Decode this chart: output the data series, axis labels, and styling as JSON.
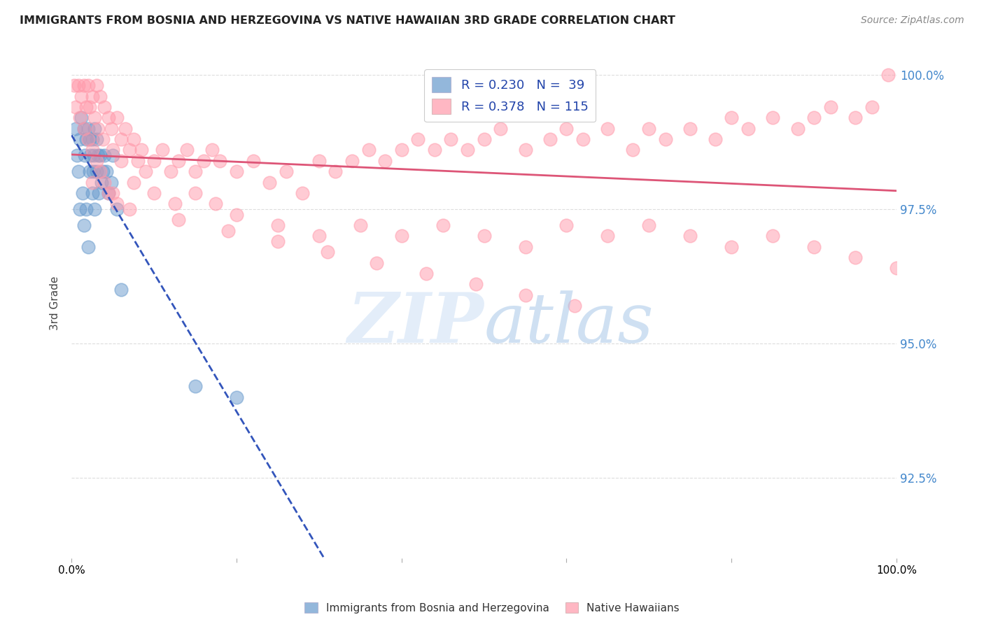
{
  "title": "IMMIGRANTS FROM BOSNIA AND HERZEGOVINA VS NATIVE HAWAIIAN 3RD GRADE CORRELATION CHART",
  "source": "Source: ZipAtlas.com",
  "ylabel": "3rd Grade",
  "xlim": [
    0.0,
    1.0
  ],
  "ylim": [
    0.91,
    1.005
  ],
  "yticks": [
    0.925,
    0.95,
    0.975,
    1.0
  ],
  "ytick_labels": [
    "92.5%",
    "95.0%",
    "97.5%",
    "100.0%"
  ],
  "xticks": [
    0.0,
    0.2,
    0.4,
    0.6,
    0.8,
    1.0
  ],
  "xtick_labels": [
    "0.0%",
    "",
    "",
    "",
    "",
    "100.0%"
  ],
  "legend_r1": "R = 0.230",
  "legend_n1": "N =  39",
  "legend_r2": "R = 0.378",
  "legend_n2": "N = 115",
  "blue_color": "#6699CC",
  "pink_color": "#FF99AA",
  "blue_line_color": "#3355BB",
  "pink_line_color": "#DD5577",
  "legend_label1": "Immigrants from Bosnia and Herzegovina",
  "legend_label2": "Native Hawaiians",
  "blue_x": [
    0.005,
    0.007,
    0.008,
    0.01,
    0.01,
    0.012,
    0.013,
    0.015,
    0.015,
    0.016,
    0.018,
    0.018,
    0.02,
    0.02,
    0.022,
    0.022,
    0.023,
    0.025,
    0.025,
    0.026,
    0.027,
    0.028,
    0.028,
    0.03,
    0.03,
    0.032,
    0.033,
    0.035,
    0.036,
    0.038,
    0.04,
    0.042,
    0.045,
    0.048,
    0.05,
    0.055,
    0.06,
    0.15,
    0.2
  ],
  "blue_y": [
    0.99,
    0.985,
    0.982,
    0.988,
    0.975,
    0.992,
    0.978,
    0.99,
    0.972,
    0.985,
    0.988,
    0.975,
    0.99,
    0.968,
    0.988,
    0.982,
    0.985,
    0.988,
    0.978,
    0.982,
    0.985,
    0.99,
    0.975,
    0.988,
    0.982,
    0.985,
    0.978,
    0.985,
    0.98,
    0.982,
    0.985,
    0.982,
    0.978,
    0.98,
    0.985,
    0.975,
    0.96,
    0.942,
    0.94
  ],
  "pink_x": [
    0.003,
    0.005,
    0.008,
    0.01,
    0.012,
    0.015,
    0.015,
    0.018,
    0.02,
    0.02,
    0.022,
    0.025,
    0.025,
    0.028,
    0.03,
    0.03,
    0.032,
    0.035,
    0.035,
    0.038,
    0.04,
    0.04,
    0.045,
    0.045,
    0.048,
    0.05,
    0.055,
    0.055,
    0.06,
    0.06,
    0.065,
    0.07,
    0.075,
    0.08,
    0.085,
    0.09,
    0.1,
    0.11,
    0.12,
    0.13,
    0.14,
    0.15,
    0.16,
    0.17,
    0.18,
    0.2,
    0.22,
    0.24,
    0.26,
    0.28,
    0.3,
    0.32,
    0.34,
    0.36,
    0.38,
    0.4,
    0.42,
    0.44,
    0.46,
    0.48,
    0.5,
    0.52,
    0.55,
    0.58,
    0.6,
    0.62,
    0.65,
    0.68,
    0.7,
    0.72,
    0.75,
    0.78,
    0.8,
    0.82,
    0.85,
    0.88,
    0.9,
    0.92,
    0.95,
    0.97,
    0.99,
    0.025,
    0.05,
    0.075,
    0.1,
    0.125,
    0.15,
    0.175,
    0.2,
    0.25,
    0.3,
    0.35,
    0.4,
    0.45,
    0.5,
    0.55,
    0.6,
    0.65,
    0.7,
    0.75,
    0.8,
    0.85,
    0.9,
    0.95,
    1.0,
    0.07,
    0.13,
    0.19,
    0.25,
    0.31,
    0.37,
    0.43,
    0.49,
    0.55,
    0.61
  ],
  "pink_y": [
    0.998,
    0.994,
    0.998,
    0.992,
    0.996,
    0.998,
    0.99,
    0.994,
    0.998,
    0.988,
    0.994,
    0.996,
    0.986,
    0.992,
    0.998,
    0.984,
    0.99,
    0.996,
    0.982,
    0.988,
    0.994,
    0.98,
    0.992,
    0.978,
    0.99,
    0.986,
    0.992,
    0.976,
    0.988,
    0.984,
    0.99,
    0.986,
    0.988,
    0.984,
    0.986,
    0.982,
    0.984,
    0.986,
    0.982,
    0.984,
    0.986,
    0.982,
    0.984,
    0.986,
    0.984,
    0.982,
    0.984,
    0.98,
    0.982,
    0.978,
    0.984,
    0.982,
    0.984,
    0.986,
    0.984,
    0.986,
    0.988,
    0.986,
    0.988,
    0.986,
    0.988,
    0.99,
    0.986,
    0.988,
    0.99,
    0.988,
    0.99,
    0.986,
    0.99,
    0.988,
    0.99,
    0.988,
    0.992,
    0.99,
    0.992,
    0.99,
    0.992,
    0.994,
    0.992,
    0.994,
    1.0,
    0.98,
    0.978,
    0.98,
    0.978,
    0.976,
    0.978,
    0.976,
    0.974,
    0.972,
    0.97,
    0.972,
    0.97,
    0.972,
    0.97,
    0.968,
    0.972,
    0.97,
    0.972,
    0.97,
    0.968,
    0.97,
    0.968,
    0.966,
    0.964,
    0.975,
    0.973,
    0.971,
    0.969,
    0.967,
    0.965,
    0.963,
    0.961,
    0.959,
    0.957
  ]
}
